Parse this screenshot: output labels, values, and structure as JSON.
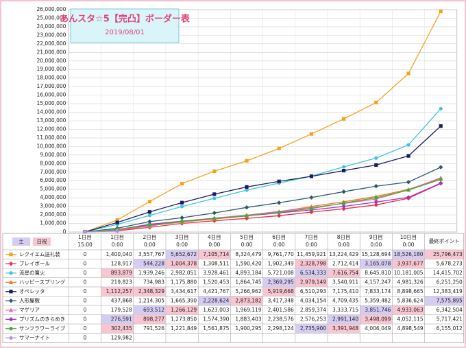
{
  "chart_data": {
    "type": "line",
    "title": "あんスタ☆5【完凸】ボーダー表",
    "subtitle": "2019/08/01",
    "categories": [
      [
        "1日目",
        "15:00"
      ],
      [
        "1日目",
        "0:00"
      ],
      [
        "2日目",
        "0:00"
      ],
      [
        "3日目",
        "0:00"
      ],
      [
        "4日目",
        "0:00"
      ],
      [
        "5日目",
        "0:00"
      ],
      [
        "6日目",
        "0:00"
      ],
      [
        "7日目",
        "0:00"
      ],
      [
        "8日目",
        "0:00"
      ],
      [
        "9日目",
        "0:00"
      ],
      [
        "10日目",
        "0:00"
      ],
      [
        "最終ポイント"
      ]
    ],
    "ylim": [
      0,
      26000000
    ],
    "yticks": [
      0,
      {
        "value": 1000000,
        "label": "1,000,000"
      },
      {
        "value": 2000000,
        "label": "2,000,000"
      },
      {
        "value": 3000000,
        "label": "3,000,000"
      },
      {
        "value": 4000000,
        "label": "4,000,000"
      },
      {
        "value": 5000000,
        "label": "5,000,000"
      },
      {
        "value": 6000000,
        "label": "6,000,000"
      },
      {
        "value": 7000000,
        "label": "7,000,000"
      },
      {
        "value": 8000000,
        "label": "8,000,000"
      },
      {
        "value": 9000000,
        "label": "9,000,000"
      },
      {
        "value": 10000000,
        "label": "10,000,000"
      },
      {
        "value": 11000000,
        "label": "11,000,000"
      },
      {
        "value": 12000000,
        "label": "12,000,000"
      },
      {
        "value": 13000000,
        "label": "13,000,000"
      },
      {
        "value": 14000000,
        "label": "14,000,000"
      },
      {
        "value": 15000000,
        "label": "15,000,000"
      },
      {
        "value": 16000000,
        "label": "16,000,000"
      },
      {
        "value": 17000000,
        "label": "17,000,000"
      },
      {
        "value": 18000000,
        "label": "18,000,000"
      },
      {
        "value": 19000000,
        "label": "19,000,000"
      },
      {
        "value": 20000000,
        "label": "20,000,000"
      },
      {
        "value": 21000000,
        "label": "21,000,000"
      },
      {
        "value": 22000000,
        "label": "22,000,000"
      },
      {
        "value": 23000000,
        "label": "23,000,000"
      },
      {
        "value": 24000000,
        "label": "24,000,000"
      },
      {
        "value": 25000000,
        "label": "25,000,000"
      },
      {
        "value": 26000000,
        "label": "26,000,000"
      }
    ],
    "grid": true,
    "day_legend": [
      {
        "label": "土",
        "color": "#d6ccf2"
      },
      {
        "label": "日祝",
        "color": "#f8c6d2"
      }
    ],
    "series": [
      {
        "name": "レクイエム送礼装",
        "color": "#f5a21e",
        "marker": "square",
        "values": [
          0,
          1400040,
          3557767,
          5652672,
          7105714,
          8324479,
          9761770,
          11459921,
          13224429,
          15128694,
          18526180,
          25796473
        ],
        "value_labels": [
          "0",
          "1,400,040",
          "3,557,767",
          "5,652,672",
          "7,105,714",
          "8,324,479",
          "9,761,770",
          "11,459,921",
          "13,224,429",
          "15,128,694",
          "18,526,180",
          "25,796,473"
        ],
        "cell_colors": [
          null,
          null,
          null,
          "#d6ccf2",
          "#f8c6d2",
          null,
          null,
          null,
          null,
          null,
          "#d6ccf2",
          "#f8c6d2"
        ]
      },
      {
        "name": "ブレイボール",
        "color": "#e8304c",
        "marker": "diamond",
        "values": [
          0,
          128917,
          544228,
          1004378,
          1308511,
          1590420,
          1902349,
          2328798,
          2712414,
          3165078,
          3937677,
          5678273
        ],
        "value_labels": [
          "0",
          "128,917",
          "544,228",
          "1,004,378",
          "1,308,511",
          "1,590,420",
          "1,902,349",
          "2,328,798",
          "2,712,414",
          "3,165,078",
          "3,937,677",
          "5,678,273"
        ],
        "cell_colors": [
          null,
          null,
          "#d6ccf2",
          "#f8c6d2",
          null,
          null,
          null,
          "#f8c6d2",
          null,
          "#d6ccf2",
          "#f8c6d2",
          null
        ]
      },
      {
        "name": "流星の篝火",
        "color": "#3ec6d8",
        "marker": "circle",
        "values": [
          0,
          893879,
          1939246,
          2982051,
          3928461,
          4893184,
          5721008,
          6534333,
          7616754,
          8645810,
          10181005,
          14415702
        ],
        "value_labels": [
          "0",
          "893,879",
          "1,939,246",
          "2,982,051",
          "3,928,461",
          "4,893,184",
          "5,721,008",
          "6,534,333",
          "7,616,754",
          "8,645,810",
          "10,181,005",
          "14,415,702"
        ],
        "cell_colors": [
          null,
          "#f8c6d2",
          null,
          null,
          null,
          null,
          null,
          "#d6ccf2",
          "#f8c6d2",
          null,
          null,
          null
        ]
      },
      {
        "name": "ハッピースプリング",
        "color": "#f07a2a",
        "marker": "triangle",
        "values": [
          0,
          219823,
          734983,
          1175880,
          1520453,
          1864745,
          2369295,
          2979149,
          3540911,
          4157247,
          4981326,
          6251250
        ],
        "value_labels": [
          "0",
          "219,823",
          "734,983",
          "1,175,880",
          "1,520,453",
          "1,864,745",
          "2,369,295",
          "2,979,149",
          "3,540,911",
          "4,157,247",
          "4,981,326",
          "6,251,250"
        ],
        "cell_colors": [
          null,
          null,
          null,
          null,
          null,
          null,
          "#d6ccf2",
          "#f8c6d2",
          null,
          null,
          null,
          null
        ]
      },
      {
        "name": "オペレッタ",
        "color": "#1b1b62",
        "marker": "square",
        "values": [
          0,
          1112257,
          2348329,
          3434617,
          4421767,
          5266962,
          5919668,
          6510293,
          7175410,
          7833174,
          8898665,
          12383419
        ],
        "value_labels": [
          "0",
          "1,112,257",
          "2,348,329",
          "3,434,617",
          "4,421,767",
          "5,266,962",
          "5,919,668",
          "6,510,293",
          "7,175,410",
          "7,833,174",
          "8,898,665",
          "12,383,419"
        ],
        "cell_colors": [
          null,
          "#f8c6d2",
          "#f8c6d2",
          null,
          null,
          null,
          "#f8c6d2",
          null,
          null,
          null,
          null,
          null
        ]
      },
      {
        "name": "人形屋敷",
        "color": "#2b5a6b",
        "marker": "diamond",
        "values": [
          0,
          437868,
          1214305,
          1665390,
          2228624,
          2873182,
          3417348,
          4034154,
          4709435,
          5359482,
          5836624,
          7575895
        ],
        "value_labels": [
          "0",
          "437,868",
          "1,214,305",
          "1,665,390",
          "2,228,624",
          "2,873,182",
          "3,417,348",
          "4,034,154",
          "4,709,435",
          "5,359,482",
          "5,836,624",
          "7,575,895"
        ],
        "cell_colors": [
          null,
          null,
          null,
          null,
          "#d6ccf2",
          "#f8c6d2",
          null,
          null,
          null,
          null,
          null,
          "#d6ccf2"
        ]
      },
      {
        "name": "マゲリア",
        "color": "#f060a4",
        "marker": "triangle",
        "values": [
          0,
          179528,
          693512,
          1266129,
          1623003,
          1969119,
          2401586,
          2859374,
          3333715,
          3851746,
          4933063,
          6342504
        ],
        "value_labels": [
          "0",
          "179,528",
          "693,512",
          "1,266,129",
          "1,623,003",
          "1,969,119",
          "2,401,586",
          "2,859,374",
          "3,333,715",
          "3,851,746",
          "4,933,063",
          "6,342,504"
        ],
        "cell_colors": [
          null,
          null,
          "#d6ccf2",
          "#f8c6d2",
          null,
          null,
          null,
          null,
          null,
          "#d6ccf2",
          "#f8c6d2",
          null
        ]
      },
      {
        "name": "プリズムのきらめき",
        "color": "#a232c2",
        "marker": "diamond",
        "values": [
          0,
          276591,
          898277,
          1273850,
          1574390,
          1883403,
          2238576,
          2576253,
          2991140,
          3498099,
          4052115,
          5717421
        ],
        "value_labels": [
          "0",
          "276,591",
          "898,277",
          "1,273,850",
          "1,574,390",
          "1,883,403",
          "2,238,576",
          "2,576,253",
          "2,991,140",
          "3,498,099",
          "4,052,115",
          "5,717,421"
        ],
        "cell_colors": [
          null,
          "#d6ccf2",
          "#f8c6d2",
          null,
          null,
          null,
          null,
          null,
          "#d6ccf2",
          "#f8c6d2",
          null,
          null
        ]
      },
      {
        "name": "サンフラワーライブ",
        "color": "#40b032",
        "marker": "circle",
        "values": [
          0,
          302435,
          791526,
          1221849,
          1561875,
          1900295,
          2298124,
          2735900,
          3391948,
          4006049,
          4898549,
          6155012
        ],
        "value_labels": [
          "0",
          "302,435",
          "791,526",
          "1,221,849",
          "1,561,875",
          "1,900,295",
          "2,298,124",
          "2,735,900",
          "3,391,948",
          "4,006,049",
          "4,898,549",
          "6,155,012"
        ],
        "cell_colors": [
          null,
          "#f8c6d2",
          null,
          null,
          null,
          null,
          null,
          "#d6ccf2",
          "#f8c6d2",
          null,
          null,
          null
        ]
      },
      {
        "name": "サマーナイト",
        "color": "#b292e2",
        "marker": "diamond",
        "values": [
          0,
          129982,
          null,
          null,
          null,
          null,
          null,
          null,
          null,
          null,
          null,
          null
        ],
        "value_labels": [
          "0",
          "129,982",
          null,
          null,
          null,
          null,
          null,
          null,
          null,
          null,
          null,
          null
        ],
        "cell_colors": [
          null,
          null,
          null,
          null,
          null,
          null,
          null,
          null,
          null,
          null,
          null,
          null
        ]
      }
    ]
  }
}
